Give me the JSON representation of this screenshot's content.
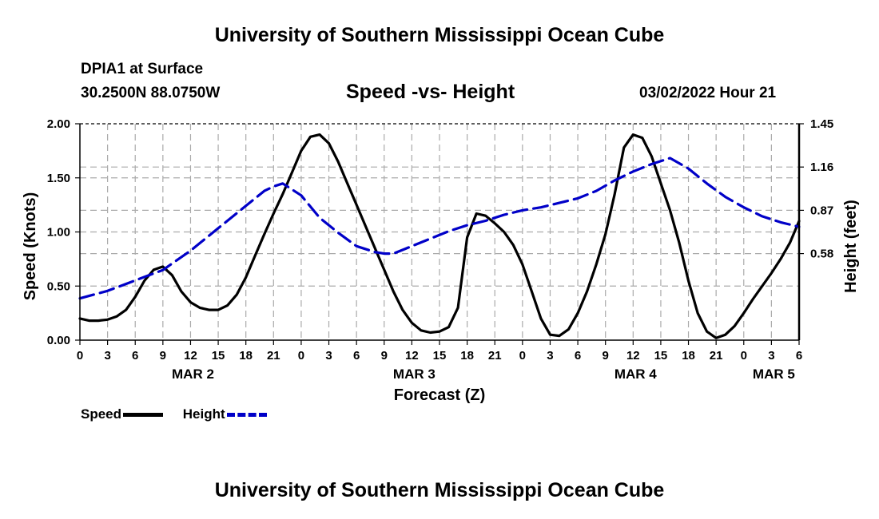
{
  "page": {
    "title_top": "University of Southern Mississippi Ocean Cube",
    "title_bottom": "University of Southern Mississippi Ocean Cube",
    "station": "DPIA1 at Surface",
    "coords": "30.2500N  88.0750W",
    "chart_title": "Speed -vs- Height",
    "datetime": "03/02/2022 Hour 21"
  },
  "legend": {
    "speed": "Speed",
    "height": "Height"
  },
  "colors": {
    "speed": "#000000",
    "height": "#0000c8",
    "grid": "#aaaaaa"
  },
  "chart_data": {
    "type": "line",
    "title": "Speed -vs- Height",
    "xlabel": "Forecast (Z)",
    "ylabel": "Speed (Knots)",
    "y2label": "Height (feet)",
    "x_unit": "hours from MAR 2 00Z",
    "xlim": [
      0,
      78
    ],
    "ylim": [
      0,
      2.0
    ],
    "y2lim": [
      0.0,
      1.45
    ],
    "x_ticks": [
      0,
      3,
      6,
      9,
      12,
      15,
      18,
      21,
      24,
      27,
      30,
      33,
      36,
      39,
      42,
      45,
      48,
      51,
      54,
      57,
      60,
      63,
      66,
      69,
      72,
      75,
      78
    ],
    "x_tick_labels": [
      "0",
      "3",
      "6",
      "9",
      "12",
      "15",
      "18",
      "21",
      "0",
      "3",
      "6",
      "9",
      "12",
      "15",
      "18",
      "21",
      "0",
      "3",
      "6",
      "9",
      "12",
      "15",
      "18",
      "21",
      "0",
      "3",
      "6"
    ],
    "y_ticks": [
      0,
      0.5,
      1.0,
      1.5,
      2.0
    ],
    "y_tick_labels": [
      "0.00",
      "0.50",
      "1.00",
      "1.50",
      "2.00"
    ],
    "y2_ticks": [
      0.58,
      0.87,
      1.16,
      1.45
    ],
    "y2_tick_labels": [
      "0.58",
      "0.87",
      "1.16",
      "1.45"
    ],
    "day_labels": [
      {
        "x": 12,
        "label": "MAR 2"
      },
      {
        "x": 36,
        "label": "MAR 3"
      },
      {
        "x": 60,
        "label": "MAR 4"
      },
      {
        "x": 75,
        "label": "MAR 5"
      }
    ],
    "series": [
      {
        "name": "Speed",
        "axis": "left",
        "style": "solid",
        "x": [
          0,
          1,
          2,
          3,
          4,
          5,
          6,
          7,
          8,
          9,
          10,
          11,
          12,
          13,
          14,
          15,
          16,
          17,
          18,
          19,
          20,
          21,
          22,
          23,
          24,
          25,
          26,
          27,
          28,
          29,
          30,
          31,
          32,
          33,
          34,
          35,
          36,
          37,
          38,
          39,
          40,
          41,
          42,
          43,
          44,
          45,
          46,
          47,
          48,
          49,
          50,
          51,
          52,
          53,
          54,
          55,
          56,
          57,
          58,
          59,
          60,
          61,
          62,
          63,
          64,
          65,
          66,
          67,
          68,
          69,
          70,
          71,
          72,
          73,
          74,
          75,
          76,
          77,
          78
        ],
        "values": [
          0.2,
          0.18,
          0.18,
          0.19,
          0.22,
          0.28,
          0.4,
          0.55,
          0.65,
          0.68,
          0.6,
          0.45,
          0.35,
          0.3,
          0.28,
          0.28,
          0.32,
          0.42,
          0.58,
          0.78,
          0.98,
          1.17,
          1.35,
          1.55,
          1.75,
          1.88,
          1.9,
          1.82,
          1.65,
          1.45,
          1.25,
          1.05,
          0.85,
          0.65,
          0.45,
          0.28,
          0.16,
          0.09,
          0.07,
          0.08,
          0.12,
          0.3,
          0.95,
          1.17,
          1.15,
          1.08,
          1.0,
          0.88,
          0.7,
          0.45,
          0.2,
          0.05,
          0.04,
          0.1,
          0.25,
          0.45,
          0.7,
          0.98,
          1.35,
          1.78,
          1.9,
          1.87,
          1.7,
          1.45,
          1.2,
          0.9,
          0.55,
          0.25,
          0.08,
          0.02,
          0.05,
          0.13,
          0.25,
          0.38,
          0.5,
          0.62,
          0.75,
          0.9,
          1.1
        ]
      },
      {
        "name": "Height",
        "axis": "right",
        "style": "dashed",
        "x": [
          0,
          3,
          6,
          9,
          12,
          15,
          18,
          20,
          21,
          22,
          24,
          26,
          28,
          30,
          32,
          33,
          34,
          36,
          38,
          40,
          42,
          44,
          46,
          48,
          50,
          52,
          54,
          56,
          58,
          60,
          62,
          64,
          66,
          68,
          70,
          72,
          74,
          76,
          78
        ],
        "values": [
          0.28,
          0.33,
          0.4,
          0.47,
          0.6,
          0.75,
          0.9,
          1.0,
          1.03,
          1.05,
          0.97,
          0.82,
          0.72,
          0.63,
          0.59,
          0.58,
          0.58,
          0.63,
          0.68,
          0.73,
          0.77,
          0.8,
          0.84,
          0.87,
          0.89,
          0.92,
          0.95,
          1.0,
          1.07,
          1.13,
          1.18,
          1.22,
          1.15,
          1.05,
          0.96,
          0.89,
          0.83,
          0.79,
          0.76
        ]
      }
    ]
  }
}
